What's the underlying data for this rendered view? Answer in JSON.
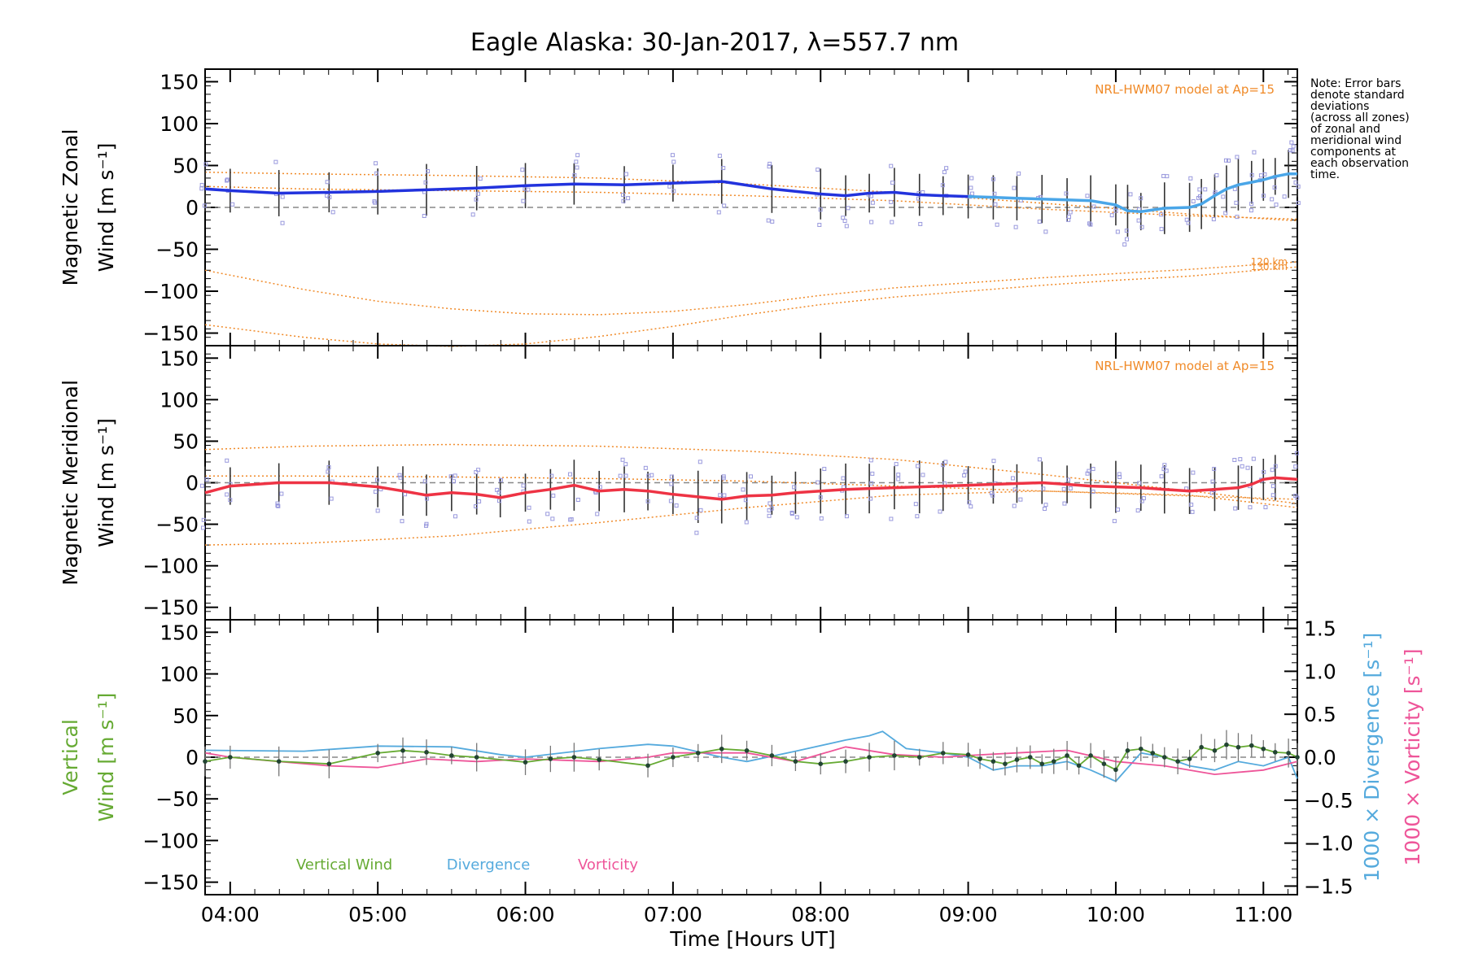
{
  "title": "Eagle Alaska: 30-Jan-2017, λ=557.7 nm",
  "note": [
    "Note: Error bars",
    "denote standard",
    "deviations",
    "(across all zones)",
    "of zonal and",
    "meridional wind",
    "components at",
    "each observation",
    "time."
  ],
  "colors": {
    "zonal": "#2233dd",
    "zonal_light": "#4aa6e8",
    "meridional": "#ee3344",
    "model": "#f08a28",
    "vertical": "#66aa33",
    "divergence": "#55aadd",
    "vorticity": "#ee5599",
    "zone_points": "#9999dd",
    "errorbar": "#333333"
  },
  "chart_data": [
    {
      "type": "line",
      "panel": "zonal",
      "ylabel": [
        "Magnetic Zonal",
        "Wind [m s⁻¹]"
      ],
      "ylim": [
        -165,
        165
      ],
      "yticks": [
        -150,
        -100,
        -50,
        0,
        50,
        100,
        150
      ],
      "xlim": [
        3.83,
        11.23
      ],
      "model_label": "NRL-HWM07 model at Ap=15",
      "model_altitude_labels": [
        "120 km",
        "130 km"
      ],
      "series": [
        {
          "role": "wind",
          "x": [
            3.83,
            4.0,
            4.33,
            4.67,
            5.0,
            5.33,
            5.67,
            6.0,
            6.33,
            6.67,
            7.0,
            7.33,
            7.67,
            8.0,
            8.17,
            8.33,
            8.5,
            8.67,
            8.83,
            9.0,
            9.17,
            9.33,
            9.5,
            9.67,
            9.83,
            10.0,
            10.08,
            10.17,
            10.33,
            10.5,
            10.58,
            10.67,
            10.75,
            10.83,
            10.92,
            11.0,
            11.08,
            11.17,
            11.23
          ],
          "y": [
            22,
            20,
            17,
            18,
            19,
            21,
            23,
            26,
            28,
            27,
            29,
            31,
            22,
            16,
            14,
            17,
            18,
            15,
            14,
            13,
            12,
            11,
            10,
            9,
            8,
            3,
            -4,
            -5,
            -1,
            0,
            4,
            14,
            22,
            27,
            30,
            33,
            37,
            40,
            40
          ]
        },
        {
          "role": "model",
          "x": [
            3.83,
            4.5,
            5.5,
            6.5,
            7.5,
            8.5,
            9.5,
            10.5,
            11.23
          ],
          "y": [
            42,
            40,
            38,
            35,
            28,
            18,
            5,
            -8,
            -16
          ]
        },
        {
          "role": "model",
          "x": [
            3.83,
            4.5,
            5.5,
            6.5,
            7.5,
            8.5,
            9.5,
            10.5,
            11.23
          ],
          "y": [
            25,
            22,
            20,
            18,
            14,
            8,
            -2,
            -10,
            -14
          ]
        },
        {
          "role": "model",
          "label": "120 km",
          "x": [
            3.83,
            4.5,
            5.0,
            5.5,
            6.0,
            6.5,
            7.0,
            7.5,
            8.0,
            8.5,
            9.0,
            9.5,
            10.0,
            10.5,
            11.23
          ],
          "y": [
            -75,
            -98,
            -112,
            -121,
            -127,
            -128,
            -124,
            -116,
            -105,
            -96,
            -90,
            -84,
            -79,
            -74,
            -65
          ]
        },
        {
          "role": "model",
          "label": "130 km",
          "x": [
            3.83,
            4.5,
            5.0,
            5.5,
            6.0,
            6.5,
            7.0,
            7.5,
            8.0,
            8.5,
            9.0,
            9.5,
            10.0,
            10.5,
            11.23
          ],
          "y": [
            -140,
            -155,
            -163,
            -166,
            -163,
            -154,
            -142,
            -128,
            -116,
            -107,
            -100,
            -93,
            -87,
            -82,
            -71
          ]
        }
      ]
    },
    {
      "type": "line",
      "panel": "meridional",
      "ylabel": [
        "Magnetic Meridional",
        "Wind [m s⁻¹]"
      ],
      "ylim": [
        -165,
        165
      ],
      "yticks": [
        -150,
        -100,
        -50,
        0,
        50,
        100,
        150
      ],
      "xlim": [
        3.83,
        11.23
      ],
      "model_label": "NRL-HWM07 model at Ap=15",
      "series": [
        {
          "role": "wind",
          "x": [
            3.83,
            4.0,
            4.33,
            4.67,
            5.0,
            5.17,
            5.33,
            5.5,
            5.67,
            5.83,
            6.0,
            6.17,
            6.33,
            6.5,
            6.67,
            6.83,
            7.0,
            7.17,
            7.33,
            7.5,
            7.67,
            7.83,
            8.0,
            8.17,
            8.33,
            8.5,
            8.67,
            8.83,
            9.0,
            9.17,
            9.33,
            9.5,
            9.67,
            9.83,
            10.0,
            10.17,
            10.33,
            10.5,
            10.67,
            10.83,
            10.92,
            11.0,
            11.08,
            11.23
          ],
          "y": [
            -12,
            -4,
            0,
            0,
            -5,
            -10,
            -15,
            -12,
            -14,
            -18,
            -12,
            -8,
            -3,
            -10,
            -8,
            -10,
            -14,
            -17,
            -20,
            -16,
            -15,
            -12,
            -10,
            -8,
            -7,
            -6,
            -5,
            -4,
            -3,
            -2,
            -1,
            0,
            -2,
            -4,
            -5,
            -6,
            -8,
            -10,
            -8,
            -6,
            -2,
            4,
            6,
            4
          ]
        },
        {
          "role": "model",
          "x": [
            3.83,
            4.5,
            5.5,
            6.5,
            7.5,
            8.5,
            9.5,
            10.5,
            11.23
          ],
          "y": [
            40,
            44,
            46,
            44,
            38,
            28,
            10,
            -10,
            -25
          ]
        },
        {
          "role": "model",
          "x": [
            3.83,
            4.5,
            5.5,
            6.5,
            7.5,
            8.5,
            9.5,
            10.5,
            11.23
          ],
          "y": [
            8,
            8,
            7,
            5,
            2,
            -4,
            -10,
            -16,
            -20
          ]
        },
        {
          "role": "model",
          "x": [
            3.83,
            4.5,
            5.5,
            6.5,
            7.5,
            8.5,
            9.5,
            10.5,
            11.23
          ],
          "y": [
            -75,
            -73,
            -64,
            -48,
            -30,
            -15,
            -10,
            -15,
            -30
          ]
        }
      ]
    },
    {
      "type": "line",
      "panel": "vertical",
      "ylabel": [
        "Vertical",
        "Wind [m s⁻¹]"
      ],
      "ylim": [
        -165,
        165
      ],
      "yticks": [
        -150,
        -100,
        -50,
        0,
        50,
        100,
        150
      ],
      "xlim": [
        3.83,
        11.23
      ],
      "y2label_divergence": "1000 × Divergence [s⁻¹]",
      "y2label_vorticity": "1000 × Vorticity [s⁻¹]",
      "y2lim": [
        -1.6,
        1.6
      ],
      "y2ticks": [
        -1.5,
        -1.0,
        -0.5,
        0.0,
        0.5,
        1.0,
        1.5
      ],
      "y2ticklabels": [
        "−1.5",
        "−1.0",
        "−0.5",
        "0.0",
        "0.5",
        "1.0",
        "1.5"
      ],
      "legend": [
        "Vertical Wind",
        "Divergence",
        "Vorticity"
      ],
      "series": [
        {
          "name": "Vertical Wind",
          "axis": "left",
          "x": [
            3.83,
            4.0,
            4.33,
            4.67,
            5.0,
            5.17,
            5.33,
            5.5,
            5.67,
            6.0,
            6.17,
            6.33,
            6.5,
            6.83,
            7.0,
            7.17,
            7.33,
            7.5,
            7.67,
            7.83,
            8.0,
            8.17,
            8.33,
            8.5,
            8.67,
            8.83,
            9.0,
            9.08,
            9.17,
            9.25,
            9.33,
            9.42,
            9.5,
            9.58,
            9.67,
            9.75,
            9.83,
            9.92,
            10.0,
            10.08,
            10.17,
            10.25,
            10.33,
            10.42,
            10.5,
            10.58,
            10.67,
            10.75,
            10.83,
            10.92,
            11.0,
            11.08,
            11.17,
            11.23
          ],
          "y": [
            -5,
            0,
            -5,
            -8,
            5,
            8,
            6,
            2,
            0,
            -6,
            -2,
            0,
            -3,
            -10,
            0,
            5,
            10,
            8,
            2,
            -5,
            -8,
            -5,
            0,
            2,
            0,
            5,
            3,
            -2,
            -5,
            -8,
            -3,
            0,
            -8,
            -5,
            2,
            -10,
            2,
            -8,
            -15,
            8,
            10,
            5,
            0,
            -5,
            -2,
            12,
            8,
            15,
            12,
            14,
            10,
            6,
            5,
            0
          ]
        },
        {
          "name": "Divergence",
          "axis": "right",
          "x": [
            3.83,
            4.5,
            5.0,
            5.5,
            5.83,
            6.0,
            6.5,
            6.83,
            7.0,
            7.33,
            7.5,
            7.83,
            8.17,
            8.33,
            8.42,
            8.58,
            8.83,
            9.0,
            9.17,
            9.33,
            9.5,
            9.67,
            9.83,
            10.0,
            10.17,
            10.33,
            10.5,
            10.67,
            10.83,
            11.0,
            11.17,
            11.23
          ],
          "y": [
            0.08,
            0.07,
            0.13,
            0.12,
            0.03,
            0.0,
            0.1,
            0.15,
            0.13,
            0.0,
            -0.05,
            0.07,
            0.2,
            0.25,
            0.3,
            0.1,
            0.05,
            0.0,
            -0.15,
            -0.1,
            -0.1,
            -0.05,
            -0.15,
            -0.28,
            0.05,
            0.0,
            -0.1,
            -0.15,
            -0.05,
            -0.1,
            0.0,
            -0.25
          ]
        },
        {
          "name": "Vorticity",
          "axis": "right",
          "x": [
            3.83,
            4.0,
            4.33,
            4.67,
            5.0,
            5.33,
            5.67,
            6.0,
            6.5,
            6.83,
            7.0,
            7.5,
            7.83,
            8.17,
            8.5,
            8.83,
            9.0,
            9.33,
            9.67,
            10.0,
            10.33,
            10.67,
            11.0,
            11.23
          ],
          "y": [
            0.05,
            0.0,
            -0.05,
            -0.1,
            -0.12,
            -0.02,
            -0.05,
            -0.02,
            -0.05,
            0.0,
            0.05,
            0.05,
            -0.05,
            0.12,
            0.03,
            0.0,
            0.02,
            0.05,
            0.08,
            -0.05,
            -0.1,
            -0.2,
            -0.15,
            -0.05
          ]
        }
      ]
    }
  ],
  "x_axis": {
    "label": "Time [Hours UT]",
    "tick_values": [
      4,
      5,
      6,
      7,
      8,
      9,
      10,
      11
    ],
    "tick_labels": [
      "04:00",
      "05:00",
      "06:00",
      "07:00",
      "08:00",
      "09:00",
      "10:00",
      "11:00"
    ]
  }
}
